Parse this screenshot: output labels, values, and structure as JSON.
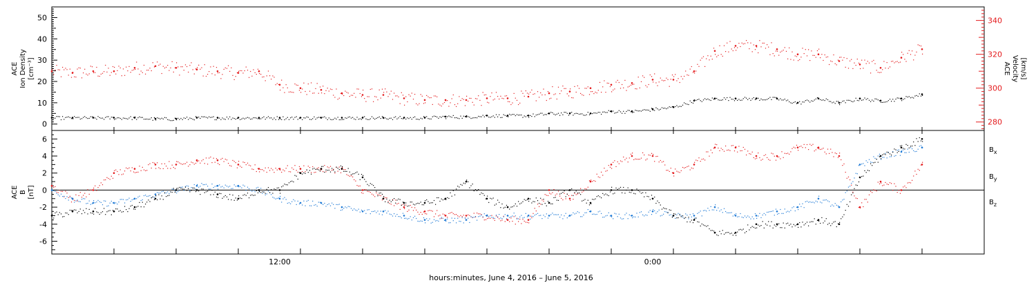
{
  "chart_data": [
    {
      "type": "scatter",
      "panel": "top",
      "ylabel_lines": [
        "ACE",
        "Ion Density",
        "[cm⁻³]"
      ],
      "ylabel_right_lines": [
        "ACE",
        "Velocity",
        "[km/s]"
      ],
      "ylim": [
        -3,
        55
      ],
      "yticks": [
        0,
        10,
        20,
        30,
        40,
        50
      ],
      "ylim_right": [
        275,
        348
      ],
      "yticks_right": [
        280,
        300,
        320,
        340
      ],
      "xlim_hours": [
        0,
        45
      ],
      "series": [
        {
          "axis": "left",
          "color": "#000000",
          "x": [
            0,
            1,
            2,
            3,
            4,
            5,
            6,
            7,
            8,
            9,
            10,
            11,
            12,
            13,
            14,
            15,
            16,
            17,
            18,
            19,
            20,
            21,
            22,
            23,
            24,
            25,
            26,
            27,
            28,
            29,
            30,
            31,
            32,
            33,
            34,
            35,
            36,
            37,
            38,
            39,
            40,
            41,
            42
          ],
          "values": [
            3,
            3,
            3,
            3,
            3,
            2.5,
            2.5,
            3,
            3,
            3,
            3,
            3,
            3,
            3,
            3,
            3,
            3,
            3,
            3,
            3.5,
            3.5,
            4,
            4,
            4,
            5,
            5,
            5,
            6,
            6,
            7,
            8,
            11,
            12,
            12,
            12,
            12,
            10,
            12,
            10,
            12,
            11,
            12,
            14
          ]
        },
        {
          "axis": "right",
          "color": "#e41a1c",
          "x": [
            0,
            1,
            2,
            3,
            4,
            5,
            6,
            7,
            8,
            9,
            10,
            11,
            12,
            13,
            14,
            15,
            16,
            17,
            18,
            19,
            20,
            21,
            22,
            23,
            24,
            25,
            26,
            27,
            28,
            29,
            30,
            31,
            32,
            33,
            34,
            35,
            36,
            37,
            38,
            39,
            40,
            41,
            42
          ],
          "values": [
            310,
            309,
            310,
            310,
            312,
            313,
            312,
            311,
            310,
            309,
            310,
            302,
            300,
            299,
            297,
            296,
            296,
            294,
            293,
            293,
            293,
            294,
            294,
            295,
            297,
            298,
            300,
            302,
            303,
            305,
            305,
            310,
            322,
            325,
            325,
            323,
            320,
            320,
            316,
            314,
            312,
            318,
            323
          ]
        }
      ]
    },
    {
      "type": "scatter",
      "panel": "bottom",
      "ylabel_lines": [
        "ACE",
        "B",
        "[nT]"
      ],
      "ylim": [
        -7.5,
        7
      ],
      "yticks": [
        -6,
        -4,
        -2,
        0,
        2,
        4,
        6
      ],
      "xlim_hours": [
        0,
        45
      ],
      "xticks": [
        {
          "hour": 11,
          "label": "12:00"
        },
        {
          "hour": 29,
          "label": "0:00"
        }
      ],
      "xlabel": "hours:minutes, June  4, 2016 – June  5, 2016",
      "legend": [
        "Bx",
        "By",
        "Bz"
      ],
      "series": [
        {
          "name": "Bx",
          "color": "#000000",
          "x": [
            0,
            1,
            2,
            3,
            4,
            5,
            6,
            7,
            8,
            9,
            10,
            11,
            12,
            13,
            14,
            15,
            16,
            17,
            18,
            19,
            20,
            21,
            22,
            23,
            24,
            25,
            26,
            27,
            28,
            29,
            30,
            31,
            32,
            33,
            34,
            35,
            36,
            37,
            38,
            39,
            40,
            41,
            42
          ],
          "values": [
            -3,
            -2.5,
            -2.5,
            -2.5,
            -2,
            -1,
            0,
            0,
            -0.5,
            -1,
            0,
            0,
            2,
            2.5,
            2.5,
            1.5,
            -1,
            -1.5,
            -1.5,
            -1,
            1,
            -1,
            -2,
            -1,
            -1.5,
            0,
            -1.5,
            0,
            0,
            -1,
            -3,
            -3.5,
            -5,
            -5,
            -4,
            -4,
            -4,
            -3.5,
            -4,
            1.5,
            4,
            5,
            6
          ]
        },
        {
          "name": "By",
          "color": "#1f7ad6",
          "x": [
            0,
            1,
            2,
            3,
            4,
            5,
            6,
            7,
            8,
            9,
            10,
            11,
            12,
            13,
            14,
            15,
            16,
            17,
            18,
            19,
            20,
            21,
            22,
            23,
            24,
            25,
            26,
            27,
            28,
            29,
            30,
            31,
            32,
            33,
            34,
            35,
            36,
            37,
            38,
            39,
            40,
            41,
            42
          ],
          "values": [
            0,
            -1,
            -1.5,
            -1.5,
            -1,
            -0.5,
            0,
            0.5,
            0.5,
            0.5,
            0,
            -1,
            -1.5,
            -1.5,
            -2,
            -2.5,
            -2.5,
            -3,
            -3.5,
            -3.5,
            -3.5,
            -3,
            -3,
            -3,
            -3,
            -3,
            -2.5,
            -3,
            -3,
            -2.5,
            -3,
            -3,
            -2,
            -3,
            -3,
            -2.5,
            -2,
            -1,
            -2,
            3,
            4,
            4.5,
            5
          ]
        },
        {
          "name": "Bz",
          "color": "#e41a1c",
          "x": [
            0,
            1,
            2,
            3,
            4,
            5,
            6,
            7,
            8,
            9,
            10,
            11,
            12,
            13,
            14,
            15,
            16,
            17,
            18,
            19,
            20,
            21,
            22,
            23,
            24,
            25,
            26,
            27,
            28,
            29,
            30,
            31,
            32,
            33,
            34,
            35,
            36,
            37,
            38,
            39,
            40,
            41,
            42
          ],
          "values": [
            0.5,
            -1,
            0,
            2,
            2.5,
            3,
            3,
            3.5,
            3.5,
            3,
            2.5,
            2.5,
            2.5,
            2.5,
            2.5,
            0,
            -1,
            -2,
            -2.5,
            -3,
            -3,
            -3,
            -3.5,
            -3.5,
            0,
            -1,
            1,
            3,
            4,
            4,
            2,
            3,
            5,
            5,
            4,
            4,
            5,
            5,
            4,
            -2,
            1,
            0,
            3
          ]
        }
      ]
    }
  ]
}
